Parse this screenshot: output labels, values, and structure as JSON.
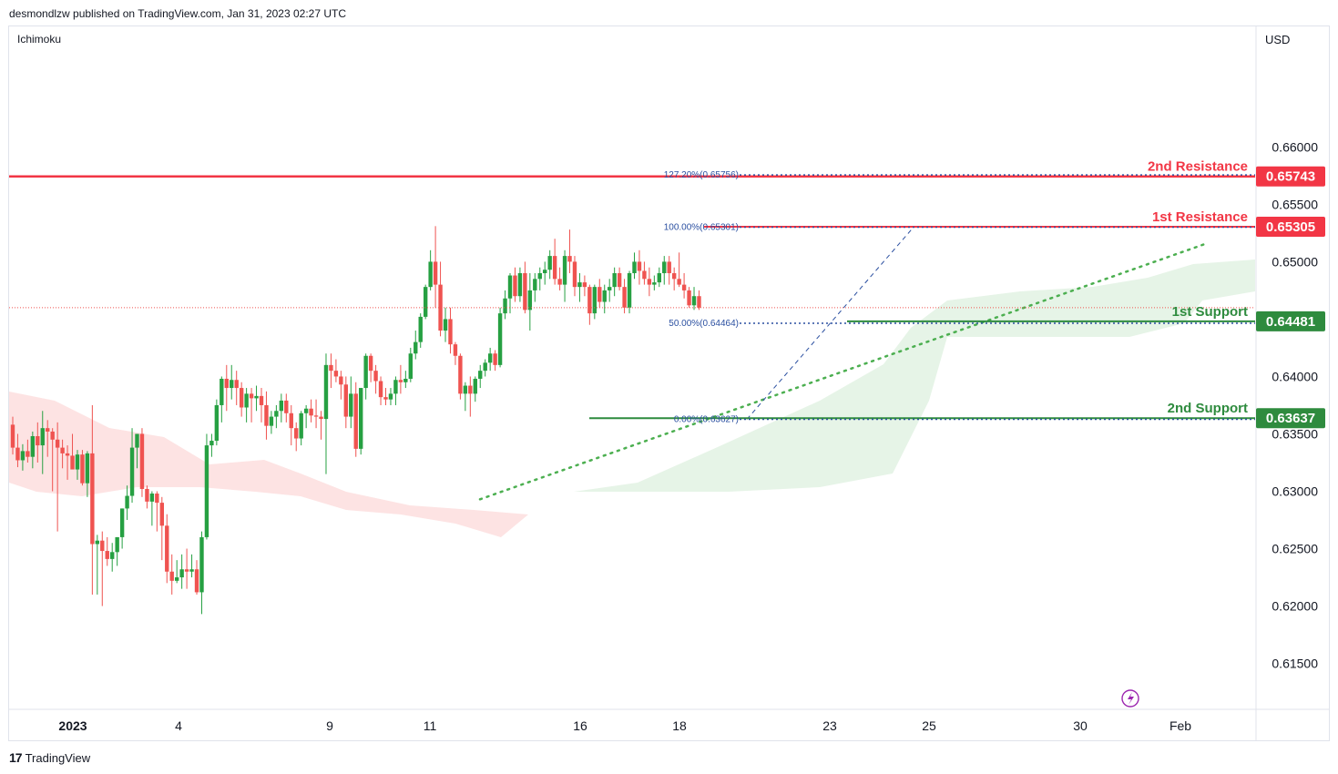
{
  "header": {
    "published": "desmondlzw published on TradingView.com, Jan 31, 2023 02:27 UTC"
  },
  "indicator": "Ichimoku",
  "currency": "USD",
  "footer": {
    "brand": "TradingView",
    "mark": "17"
  },
  "colors": {
    "up": "#26a042",
    "down": "#ef5350",
    "resistance": "#f23645",
    "support": "#2e8b3e",
    "fib": "#2a4fa0",
    "trend": "#4caf50",
    "cloud_bull": "#e6f4e7",
    "cloud_bear": "#fde3e3",
    "last_price_line": "#ef5350"
  },
  "chart_data": {
    "type": "candlestick",
    "title": "",
    "ylim": [
      0.611,
      0.6705
    ],
    "y_ticks": [
      "0.61500",
      "0.62000",
      "0.62500",
      "0.63000",
      "0.63500",
      "0.64000",
      "0.65000",
      "0.65500",
      "0.66000"
    ],
    "x_ticks": [
      {
        "label": "2023",
        "i": 0,
        "bold": true
      },
      {
        "label": "4",
        "i": 2
      },
      {
        "label": "9",
        "i": 5
      },
      {
        "label": "11",
        "i": 7
      },
      {
        "label": "16",
        "i": 10
      },
      {
        "label": "18",
        "i": 12
      },
      {
        "label": "23",
        "i": 15
      },
      {
        "label": "25",
        "i": 17
      },
      {
        "label": "30",
        "i": 20
      },
      {
        "label": "Feb",
        "i": 22
      }
    ],
    "levels": [
      {
        "name": "2nd Resistance",
        "value": "0.65743",
        "price": 0.65743,
        "kind": "resistance"
      },
      {
        "name": "1st Resistance",
        "value": "0.65305",
        "price": 0.65305,
        "kind": "resistance"
      },
      {
        "name": "1st Support",
        "value": "0.64481",
        "price": 0.64481,
        "kind": "support"
      },
      {
        "name": "2nd Support",
        "value": "0.63637",
        "price": 0.63637,
        "kind": "support"
      }
    ],
    "fib_levels": [
      {
        "label": "127.20%(0.65756)",
        "price": 0.65756
      },
      {
        "label": "100.00%(0.65301)",
        "price": 0.65301
      },
      {
        "label": "50.00%(0.64464)",
        "price": 0.64464
      },
      {
        "label": "0.00%(0.63627)",
        "price": 0.63627
      }
    ],
    "candles": [
      [
        0.6358,
        0.6365,
        0.6332,
        0.6338
      ],
      [
        0.6338,
        0.635,
        0.6321,
        0.6327
      ],
      [
        0.6327,
        0.6341,
        0.6318,
        0.6335
      ],
      [
        0.6335,
        0.6345,
        0.6325,
        0.633
      ],
      [
        0.633,
        0.6352,
        0.632,
        0.6348
      ],
      [
        0.6348,
        0.636,
        0.6325,
        0.634
      ],
      [
        0.634,
        0.637,
        0.6315,
        0.6355
      ],
      [
        0.6355,
        0.6362,
        0.633,
        0.6352
      ],
      [
        0.6352,
        0.6355,
        0.63,
        0.6345
      ],
      [
        0.6345,
        0.636,
        0.6265,
        0.6338
      ],
      [
        0.6338,
        0.6345,
        0.632,
        0.6333
      ],
      [
        0.6333,
        0.634,
        0.631,
        0.6331
      ],
      [
        0.6331,
        0.635,
        0.632,
        0.6319
      ],
      [
        0.6319,
        0.6336,
        0.631,
        0.6332
      ],
      [
        0.6332,
        0.6336,
        0.6305,
        0.6307
      ],
      [
        0.6307,
        0.6335,
        0.6295,
        0.6333
      ],
      [
        0.6333,
        0.6375,
        0.621,
        0.6254
      ],
      [
        0.6254,
        0.6262,
        0.621,
        0.6257
      ],
      [
        0.6257,
        0.6265,
        0.62,
        0.6248
      ],
      [
        0.6248,
        0.626,
        0.6235,
        0.6241
      ],
      [
        0.6241,
        0.6255,
        0.623,
        0.6247
      ],
      [
        0.6247,
        0.626,
        0.6235,
        0.626
      ],
      [
        0.626,
        0.6285,
        0.625,
        0.6285
      ],
      [
        0.6285,
        0.6305,
        0.6275,
        0.6296
      ],
      [
        0.6296,
        0.6355,
        0.629,
        0.6338
      ],
      [
        0.6338,
        0.635,
        0.632,
        0.635
      ],
      [
        0.635,
        0.6355,
        0.6295,
        0.6302
      ],
      [
        0.6302,
        0.6305,
        0.6285,
        0.6291
      ],
      [
        0.6291,
        0.63,
        0.627,
        0.6298
      ],
      [
        0.6298,
        0.63,
        0.6265,
        0.629
      ],
      [
        0.629,
        0.6295,
        0.624,
        0.627
      ],
      [
        0.627,
        0.628,
        0.622,
        0.623
      ],
      [
        0.623,
        0.6245,
        0.621,
        0.6222
      ],
      [
        0.6222,
        0.624,
        0.622,
        0.6225
      ],
      [
        0.6225,
        0.6245,
        0.6215,
        0.6232
      ],
      [
        0.6232,
        0.625,
        0.6215,
        0.623
      ],
      [
        0.623,
        0.6245,
        0.6225,
        0.6232
      ],
      [
        0.6232,
        0.624,
        0.621,
        0.6212
      ],
      [
        0.6212,
        0.6265,
        0.6193,
        0.626
      ],
      [
        0.626,
        0.635,
        0.6258,
        0.634
      ],
      [
        0.634,
        0.635,
        0.633,
        0.6344
      ],
      [
        0.6344,
        0.638,
        0.634,
        0.6375
      ],
      [
        0.6375,
        0.64,
        0.636,
        0.6398
      ],
      [
        0.6398,
        0.641,
        0.637,
        0.639
      ],
      [
        0.639,
        0.641,
        0.638,
        0.6397
      ],
      [
        0.6397,
        0.6405,
        0.6375,
        0.639
      ],
      [
        0.639,
        0.6395,
        0.6365,
        0.6373
      ],
      [
        0.6373,
        0.639,
        0.636,
        0.6385
      ],
      [
        0.6385,
        0.639,
        0.636,
        0.6381
      ],
      [
        0.6381,
        0.6392,
        0.637,
        0.6383
      ],
      [
        0.6383,
        0.639,
        0.636,
        0.6375
      ],
      [
        0.6375,
        0.6387,
        0.6345,
        0.6357
      ],
      [
        0.6357,
        0.637,
        0.635,
        0.6365
      ],
      [
        0.6365,
        0.6375,
        0.6355,
        0.637
      ],
      [
        0.637,
        0.6385,
        0.636,
        0.6379
      ],
      [
        0.6379,
        0.6385,
        0.636,
        0.6368
      ],
      [
        0.6368,
        0.6375,
        0.634,
        0.6355
      ],
      [
        0.6355,
        0.636,
        0.6335,
        0.6346
      ],
      [
        0.6346,
        0.637,
        0.634,
        0.6368
      ],
      [
        0.6368,
        0.6375,
        0.6355,
        0.6372
      ],
      [
        0.6372,
        0.638,
        0.636,
        0.6366
      ],
      [
        0.6366,
        0.638,
        0.6355,
        0.6365
      ],
      [
        0.6365,
        0.637,
        0.6345,
        0.6363
      ],
      [
        0.6363,
        0.642,
        0.6315,
        0.641
      ],
      [
        0.641,
        0.642,
        0.639,
        0.6405
      ],
      [
        0.6405,
        0.6415,
        0.6395,
        0.64
      ],
      [
        0.64,
        0.6405,
        0.638,
        0.6393
      ],
      [
        0.6393,
        0.64,
        0.6355,
        0.6365
      ],
      [
        0.6365,
        0.64,
        0.6355,
        0.6385
      ],
      [
        0.6385,
        0.6395,
        0.633,
        0.6337
      ],
      [
        0.6337,
        0.639,
        0.6332,
        0.639
      ],
      [
        0.639,
        0.642,
        0.638,
        0.6418
      ],
      [
        0.6418,
        0.642,
        0.6395,
        0.6405
      ],
      [
        0.6405,
        0.641,
        0.6385,
        0.6396
      ],
      [
        0.6396,
        0.64,
        0.6375,
        0.6382
      ],
      [
        0.6382,
        0.639,
        0.6375,
        0.638
      ],
      [
        0.638,
        0.639,
        0.6375,
        0.6385
      ],
      [
        0.6385,
        0.64,
        0.6375,
        0.6397
      ],
      [
        0.6397,
        0.641,
        0.6385,
        0.6395
      ],
      [
        0.6395,
        0.6405,
        0.639,
        0.6398
      ],
      [
        0.6398,
        0.6425,
        0.6395,
        0.642
      ],
      [
        0.642,
        0.644,
        0.6415,
        0.643
      ],
      [
        0.643,
        0.6455,
        0.6425,
        0.6452
      ],
      [
        0.6452,
        0.648,
        0.645,
        0.6478
      ],
      [
        0.6478,
        0.651,
        0.6475,
        0.65
      ],
      [
        0.65,
        0.6531,
        0.646,
        0.648
      ],
      [
        0.648,
        0.65,
        0.6435,
        0.644
      ],
      [
        0.644,
        0.646,
        0.643,
        0.645
      ],
      [
        0.645,
        0.646,
        0.642,
        0.6428
      ],
      [
        0.6428,
        0.643,
        0.641,
        0.6418
      ],
      [
        0.6418,
        0.642,
        0.638,
        0.6385
      ],
      [
        0.6385,
        0.6395,
        0.637,
        0.6392
      ],
      [
        0.6392,
        0.64,
        0.6365,
        0.6385
      ],
      [
        0.6385,
        0.64,
        0.6378,
        0.6398
      ],
      [
        0.6398,
        0.641,
        0.639,
        0.6405
      ],
      [
        0.6405,
        0.6415,
        0.64,
        0.6412
      ],
      [
        0.6412,
        0.6425,
        0.6405,
        0.642
      ],
      [
        0.642,
        0.6423,
        0.6405,
        0.641
      ],
      [
        0.641,
        0.646,
        0.6408,
        0.6455
      ],
      [
        0.6455,
        0.6475,
        0.645,
        0.6468
      ],
      [
        0.6468,
        0.649,
        0.6455,
        0.6488
      ],
      [
        0.6488,
        0.6495,
        0.6465,
        0.647
      ],
      [
        0.647,
        0.6495,
        0.6465,
        0.649
      ],
      [
        0.649,
        0.65,
        0.6455,
        0.6458
      ],
      [
        0.6458,
        0.649,
        0.644,
        0.6475
      ],
      [
        0.6475,
        0.649,
        0.6465,
        0.6485
      ],
      [
        0.6485,
        0.6495,
        0.6475,
        0.649
      ],
      [
        0.649,
        0.65,
        0.648,
        0.6493
      ],
      [
        0.6493,
        0.651,
        0.6485,
        0.6505
      ],
      [
        0.6505,
        0.652,
        0.648,
        0.6485
      ],
      [
        0.6485,
        0.6495,
        0.6475,
        0.648
      ],
      [
        0.648,
        0.651,
        0.6465,
        0.6505
      ],
      [
        0.6505,
        0.6528,
        0.649,
        0.65
      ],
      [
        0.65,
        0.6505,
        0.647,
        0.6478
      ],
      [
        0.6478,
        0.649,
        0.6465,
        0.6482
      ],
      [
        0.6482,
        0.6488,
        0.647,
        0.6478
      ],
      [
        0.6478,
        0.648,
        0.6445,
        0.6455
      ],
      [
        0.6455,
        0.648,
        0.645,
        0.6478
      ],
      [
        0.6478,
        0.6485,
        0.646,
        0.6465
      ],
      [
        0.6465,
        0.648,
        0.6455,
        0.6475
      ],
      [
        0.6475,
        0.6485,
        0.6465,
        0.6478
      ],
      [
        0.6478,
        0.6495,
        0.647,
        0.649
      ],
      [
        0.649,
        0.6495,
        0.6475,
        0.6478
      ],
      [
        0.6478,
        0.6485,
        0.6455,
        0.646
      ],
      [
        0.646,
        0.6492,
        0.6455,
        0.649
      ],
      [
        0.649,
        0.6508,
        0.6485,
        0.65
      ],
      [
        0.65,
        0.651,
        0.648,
        0.6492
      ],
      [
        0.6492,
        0.65,
        0.648,
        0.6485
      ],
      [
        0.6485,
        0.6495,
        0.647,
        0.648
      ],
      [
        0.648,
        0.6488,
        0.6475,
        0.6482
      ],
      [
        0.6482,
        0.6495,
        0.6478,
        0.649
      ],
      [
        0.649,
        0.6505,
        0.648,
        0.65
      ],
      [
        0.65,
        0.6505,
        0.648,
        0.649
      ],
      [
        0.649,
        0.6495,
        0.6475,
        0.6485
      ],
      [
        0.6485,
        0.6508,
        0.6478,
        0.648
      ],
      [
        0.648,
        0.649,
        0.6468,
        0.6475
      ],
      [
        0.6475,
        0.6478,
        0.646,
        0.6462
      ],
      [
        0.6462,
        0.6478,
        0.6458,
        0.647
      ],
      [
        0.647,
        0.6475,
        0.6458,
        0.646
      ]
    ]
  }
}
